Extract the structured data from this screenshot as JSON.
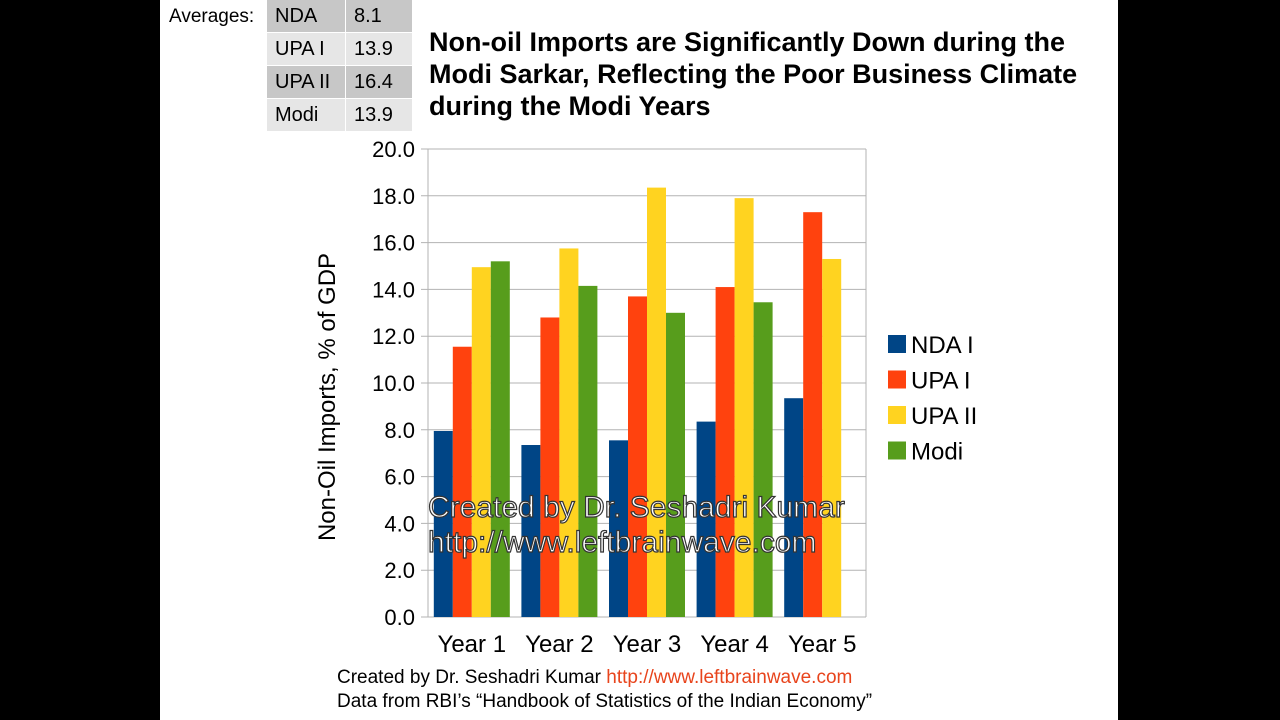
{
  "averages": {
    "label": "Averages:",
    "rows": [
      {
        "name": "NDA",
        "value": "8.1"
      },
      {
        "name": "UPA I",
        "value": "13.9"
      },
      {
        "name": "UPA II",
        "value": "16.4"
      },
      {
        "name": "Modi",
        "value": "13.9"
      }
    ]
  },
  "title": "Non-oil Imports are Significantly Down during the Modi Sarkar, Reflecting the Poor Business Climate during the Modi Years",
  "chart_data": {
    "type": "bar",
    "categories": [
      "Year 1",
      "Year 2",
      "Year 3",
      "Year 4",
      "Year 5"
    ],
    "series": [
      {
        "name": "NDA I",
        "color": "#004586",
        "values": [
          7.95,
          7.35,
          7.55,
          8.35,
          9.35
        ]
      },
      {
        "name": "UPA I",
        "color": "#ff420e",
        "values": [
          11.55,
          12.8,
          13.7,
          14.1,
          17.3
        ]
      },
      {
        "name": "UPA II",
        "color": "#ffd320",
        "values": [
          14.95,
          15.75,
          18.35,
          17.9,
          15.3
        ]
      },
      {
        "name": "Modi",
        "color": "#579d1c",
        "values": [
          15.2,
          14.15,
          13.0,
          13.45,
          null
        ]
      }
    ],
    "ylabel": "Non-Oil Imports, % of GDP",
    "xlabel": "",
    "ylim": [
      0,
      20
    ],
    "yticks": [
      "0.0",
      "2.0",
      "4.0",
      "6.0",
      "8.0",
      "10.0",
      "12.0",
      "14.0",
      "16.0",
      "18.0",
      "20.0"
    ],
    "grid": true,
    "legend": "right"
  },
  "watermark": {
    "line1": "Created by Dr. Seshadri Kumar",
    "line2": "http://www.leftbrainwave.com"
  },
  "footer": {
    "line1_prefix": "Created by Dr. Seshadri Kumar ",
    "line1_url": "http://www.leftbrainwave.com",
    "line2": "Data from RBI’s “Handbook of Statistics of the Indian Economy”"
  }
}
